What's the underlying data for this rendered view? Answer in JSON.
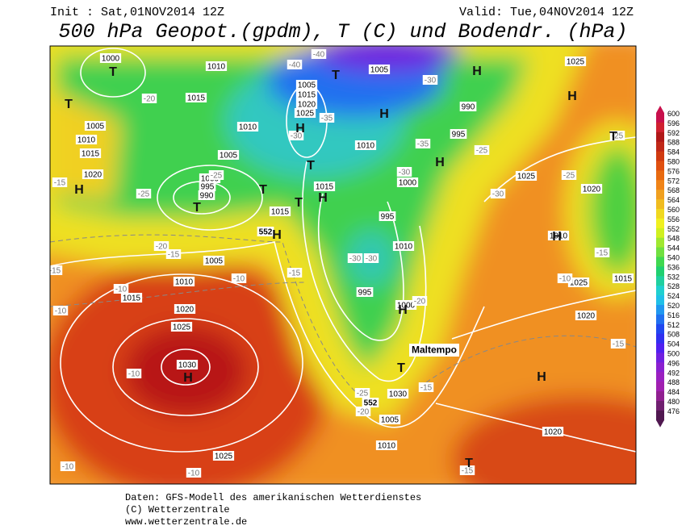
{
  "header": {
    "init": "Init : Sat,01NOV2014 12Z",
    "valid": "Valid: Tue,04NOV2014 12Z",
    "title": "500 hPa Geopot.(gpdm), T (C) und Bodendr. (hPa)"
  },
  "map": {
    "pressure_labels": [
      "1000",
      "1010",
      "1015",
      "1005",
      "1010",
      "1015",
      "1020",
      "1000",
      "995",
      "990",
      "1005",
      "1010",
      "1005",
      "1015",
      "1020",
      "1025",
      "1005",
      "990",
      "995",
      "1010",
      "1015",
      "1015",
      "1000",
      "995",
      "1010",
      "1005",
      "1010",
      "1015",
      "1020",
      "1025",
      "1030",
      "1025",
      "1005",
      "1030",
      "1010",
      "1000",
      "995",
      "1025",
      "1025",
      "1020",
      "1010",
      "1025",
      "1015",
      "1020",
      "1020"
    ],
    "temperature_labels": [
      "-20",
      "-25",
      "-30",
      "-35",
      "-40",
      "-40",
      "-30",
      "-25",
      "-35",
      "-30",
      "-30",
      "-25",
      "-15",
      "-25",
      "-15",
      "-20",
      "-15",
      "-10",
      "-10",
      "-10",
      "-15",
      "-10",
      "-10",
      "-10",
      "-15",
      "-20",
      "-15",
      "-25",
      "-20",
      "-30",
      "-10",
      "-15",
      "-15",
      "-30",
      "-25"
    ],
    "height_labels": [
      "552",
      "552"
    ],
    "centers": [
      "T",
      "T",
      "H",
      "T",
      "H",
      "T",
      "H",
      "H",
      "T",
      "T",
      "T",
      "H",
      "H",
      "T",
      "H",
      "H",
      "H",
      "H",
      "T",
      "H",
      "H",
      "T"
    ],
    "annotation": "Maltempo"
  },
  "legend": {
    "ticks": [
      600,
      596,
      592,
      588,
      584,
      580,
      576,
      572,
      568,
      564,
      560,
      556,
      552,
      548,
      544,
      540,
      536,
      532,
      528,
      524,
      520,
      516,
      512,
      508,
      504,
      500,
      496,
      492,
      488,
      484,
      480,
      476
    ],
    "colors": [
      "#c8104c",
      "#d02030",
      "#b01818",
      "#c02818",
      "#d03a10",
      "#e05010",
      "#e86a10",
      "#f08418",
      "#f0a020",
      "#f0bc20",
      "#f0d820",
      "#f0f020",
      "#d0f020",
      "#a0e830",
      "#70e040",
      "#40d850",
      "#20d070",
      "#20d0a0",
      "#20d0d0",
      "#20c0e8",
      "#2098f0",
      "#2070f0",
      "#2048f0",
      "#3030f0",
      "#5020f0",
      "#7020e0",
      "#8a20d0",
      "#9a20c0",
      "#a020b0",
      "#902090",
      "#702070",
      "#501850"
    ]
  },
  "footer": {
    "source": "Daten: GFS-Modell des amerikanischen Wetterdienstes",
    "copyright": "(C) Wetterzentrale",
    "url": "www.wetterzentrale.de"
  }
}
